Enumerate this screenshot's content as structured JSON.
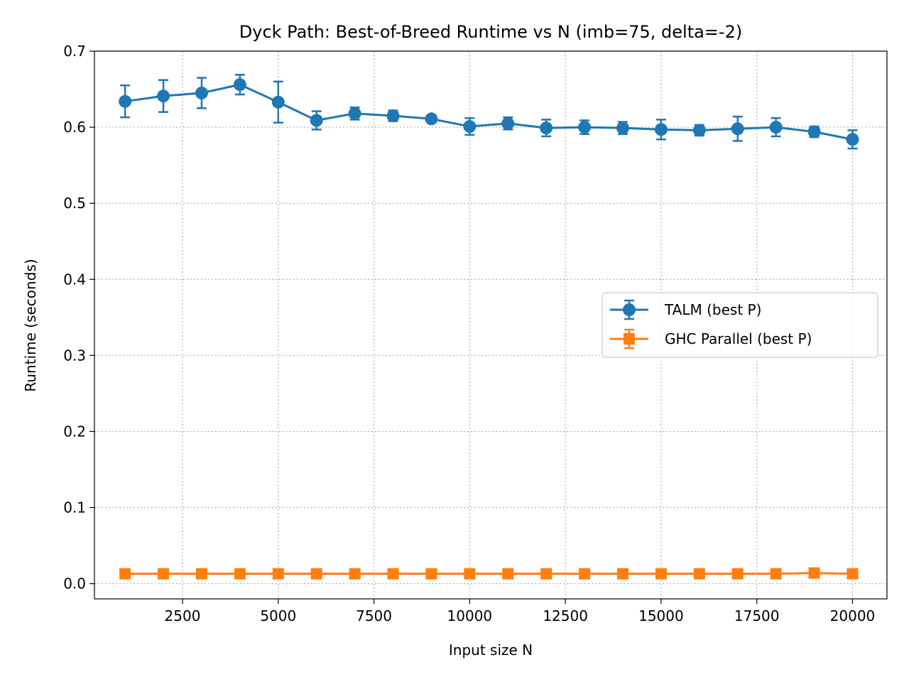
{
  "chart_data": {
    "type": "line",
    "title": "Dyck Path: Best-of-Breed Runtime vs N  (imb=75, delta=-2)",
    "xlabel": "Input size N",
    "ylabel": "Runtime (seconds)",
    "xlim": [
      200,
      20900
    ],
    "ylim": [
      -0.02,
      0.7
    ],
    "xticks": [
      2500,
      5000,
      7500,
      10000,
      12500,
      15000,
      17500,
      20000
    ],
    "yticks": [
      0.0,
      0.1,
      0.2,
      0.3,
      0.4,
      0.5,
      0.6,
      0.7
    ],
    "xtick_labels": [
      "2500",
      "5000",
      "7500",
      "10000",
      "12500",
      "15000",
      "17500",
      "20000"
    ],
    "ytick_labels": [
      "0.0",
      "0.1",
      "0.2",
      "0.3",
      "0.4",
      "0.5",
      "0.6",
      "0.7"
    ],
    "grid": true,
    "legend_position": "center-right",
    "x": [
      1000,
      2000,
      3000,
      4000,
      5000,
      6000,
      7000,
      8000,
      9000,
      10000,
      11000,
      12000,
      13000,
      14000,
      15000,
      16000,
      17000,
      18000,
      19000,
      20000
    ],
    "series": [
      {
        "name": "TALM (best P)",
        "color": "#1f77b4",
        "marker": "circle",
        "values": [
          0.634,
          0.641,
          0.645,
          0.656,
          0.633,
          0.609,
          0.618,
          0.615,
          0.611,
          0.601,
          0.605,
          0.599,
          0.6,
          0.599,
          0.597,
          0.596,
          0.598,
          0.6,
          0.594,
          0.584
        ],
        "errors": [
          0.021,
          0.021,
          0.02,
          0.013,
          0.027,
          0.012,
          0.008,
          0.007,
          0.004,
          0.011,
          0.008,
          0.011,
          0.009,
          0.008,
          0.013,
          0.007,
          0.016,
          0.012,
          0.007,
          0.012
        ]
      },
      {
        "name": "GHC Parallel (best P)",
        "color": "#ff7f0e",
        "marker": "square",
        "values": [
          0.013,
          0.013,
          0.013,
          0.013,
          0.013,
          0.013,
          0.013,
          0.013,
          0.013,
          0.013,
          0.013,
          0.013,
          0.013,
          0.013,
          0.013,
          0.013,
          0.013,
          0.013,
          0.014,
          0.013
        ],
        "errors": [
          0.001,
          0.001,
          0.001,
          0.001,
          0.001,
          0.001,
          0.001,
          0.001,
          0.001,
          0.001,
          0.001,
          0.001,
          0.001,
          0.001,
          0.001,
          0.001,
          0.001,
          0.001,
          0.001,
          0.001
        ]
      }
    ]
  }
}
